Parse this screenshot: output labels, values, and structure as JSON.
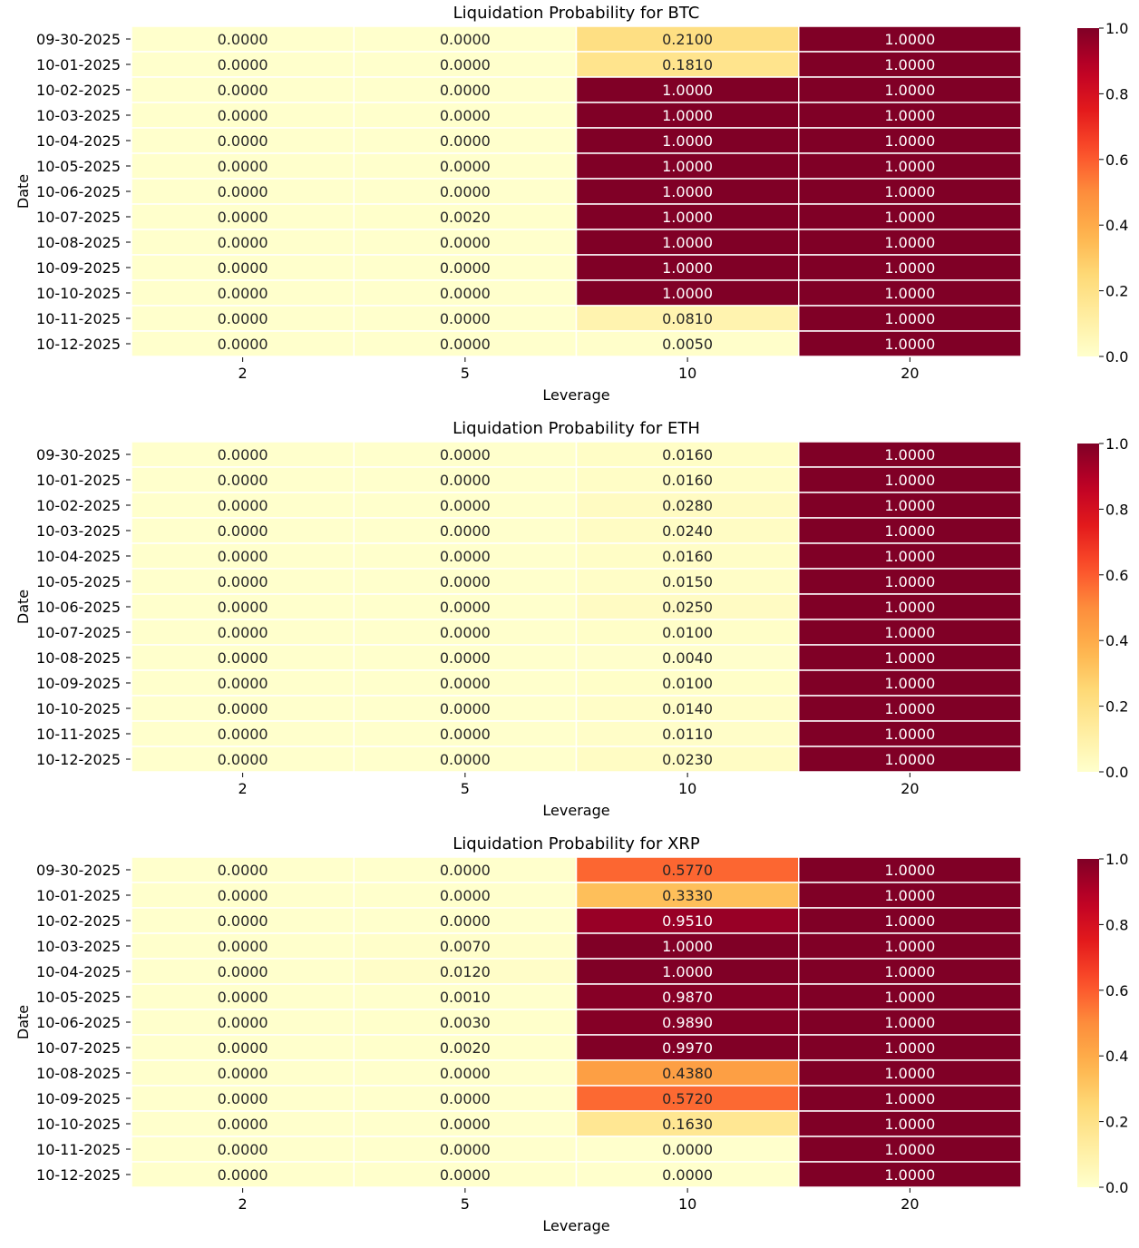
{
  "chart_data": [
    {
      "type": "heatmap",
      "title": "Liquidation Probability for BTC",
      "xlabel": "Leverage",
      "ylabel": "Date",
      "x_categories": [
        "2",
        "5",
        "10",
        "20"
      ],
      "y_categories": [
        "09-30-2025",
        "10-01-2025",
        "10-02-2025",
        "10-03-2025",
        "10-04-2025",
        "10-05-2025",
        "10-06-2025",
        "10-07-2025",
        "10-08-2025",
        "10-09-2025",
        "10-10-2025",
        "10-11-2025",
        "10-12-2025"
      ],
      "values": [
        [
          0.0,
          0.0,
          0.21,
          1.0
        ],
        [
          0.0,
          0.0,
          0.181,
          1.0
        ],
        [
          0.0,
          0.0,
          1.0,
          1.0
        ],
        [
          0.0,
          0.0,
          1.0,
          1.0
        ],
        [
          0.0,
          0.0,
          1.0,
          1.0
        ],
        [
          0.0,
          0.0,
          1.0,
          1.0
        ],
        [
          0.0,
          0.0,
          1.0,
          1.0
        ],
        [
          0.0,
          0.002,
          1.0,
          1.0
        ],
        [
          0.0,
          0.0,
          1.0,
          1.0
        ],
        [
          0.0,
          0.0,
          1.0,
          1.0
        ],
        [
          0.0,
          0.0,
          1.0,
          1.0
        ],
        [
          0.0,
          0.0,
          0.081,
          1.0
        ],
        [
          0.0,
          0.0,
          0.005,
          1.0
        ]
      ],
      "colorbar": {
        "range": [
          0.0,
          1.0
        ],
        "ticks": [
          "0.0",
          "0.2",
          "0.4",
          "0.6",
          "0.8",
          "1.0"
        ],
        "colormap": "YlOrRd"
      }
    },
    {
      "type": "heatmap",
      "title": "Liquidation Probability for ETH",
      "xlabel": "Leverage",
      "ylabel": "Date",
      "x_categories": [
        "2",
        "5",
        "10",
        "20"
      ],
      "y_categories": [
        "09-30-2025",
        "10-01-2025",
        "10-02-2025",
        "10-03-2025",
        "10-04-2025",
        "10-05-2025",
        "10-06-2025",
        "10-07-2025",
        "10-08-2025",
        "10-09-2025",
        "10-10-2025",
        "10-11-2025",
        "10-12-2025"
      ],
      "values": [
        [
          0.0,
          0.0,
          0.016,
          1.0
        ],
        [
          0.0,
          0.0,
          0.016,
          1.0
        ],
        [
          0.0,
          0.0,
          0.028,
          1.0
        ],
        [
          0.0,
          0.0,
          0.024,
          1.0
        ],
        [
          0.0,
          0.0,
          0.016,
          1.0
        ],
        [
          0.0,
          0.0,
          0.015,
          1.0
        ],
        [
          0.0,
          0.0,
          0.025,
          1.0
        ],
        [
          0.0,
          0.0,
          0.01,
          1.0
        ],
        [
          0.0,
          0.0,
          0.004,
          1.0
        ],
        [
          0.0,
          0.0,
          0.01,
          1.0
        ],
        [
          0.0,
          0.0,
          0.014,
          1.0
        ],
        [
          0.0,
          0.0,
          0.011,
          1.0
        ],
        [
          0.0,
          0.0,
          0.023,
          1.0
        ]
      ],
      "colorbar": {
        "range": [
          0.0,
          1.0
        ],
        "ticks": [
          "0.0",
          "0.2",
          "0.4",
          "0.6",
          "0.8",
          "1.0"
        ],
        "colormap": "YlOrRd"
      }
    },
    {
      "type": "heatmap",
      "title": "Liquidation Probability for XRP",
      "xlabel": "Leverage",
      "ylabel": "Date",
      "x_categories": [
        "2",
        "5",
        "10",
        "20"
      ],
      "y_categories": [
        "09-30-2025",
        "10-01-2025",
        "10-02-2025",
        "10-03-2025",
        "10-04-2025",
        "10-05-2025",
        "10-06-2025",
        "10-07-2025",
        "10-08-2025",
        "10-09-2025",
        "10-10-2025",
        "10-11-2025",
        "10-12-2025"
      ],
      "values": [
        [
          0.0,
          0.0,
          0.577,
          1.0
        ],
        [
          0.0,
          0.0,
          0.333,
          1.0
        ],
        [
          0.0,
          0.0,
          0.951,
          1.0
        ],
        [
          0.0,
          0.007,
          1.0,
          1.0
        ],
        [
          0.0,
          0.012,
          1.0,
          1.0
        ],
        [
          0.0,
          0.001,
          0.987,
          1.0
        ],
        [
          0.0,
          0.003,
          0.989,
          1.0
        ],
        [
          0.0,
          0.002,
          0.997,
          1.0
        ],
        [
          0.0,
          0.0,
          0.438,
          1.0
        ],
        [
          0.0,
          0.0,
          0.572,
          1.0
        ],
        [
          0.0,
          0.0,
          0.163,
          1.0
        ],
        [
          0.0,
          0.0,
          0.0,
          1.0
        ],
        [
          0.0,
          0.0,
          0.0,
          1.0
        ]
      ],
      "colorbar": {
        "range": [
          0.0,
          1.0
        ],
        "ticks": [
          "0.0",
          "0.2",
          "0.4",
          "0.6",
          "0.8",
          "1.0"
        ],
        "colormap": "YlOrRd"
      }
    }
  ]
}
